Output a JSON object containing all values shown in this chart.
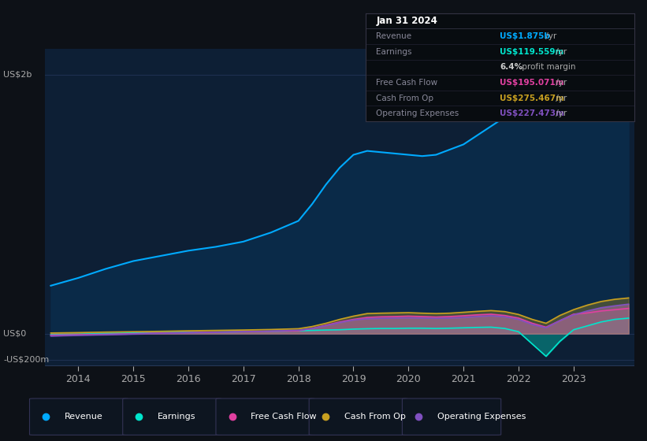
{
  "bg_color": "#0d1117",
  "plot_bg_color": "#0d1f35",
  "years": [
    2013.5,
    2014.0,
    2014.5,
    2015.0,
    2015.5,
    2016.0,
    2016.5,
    2017.0,
    2017.5,
    2018.0,
    2018.25,
    2018.5,
    2018.75,
    2019.0,
    2019.25,
    2019.5,
    2019.75,
    2020.0,
    2020.25,
    2020.5,
    2020.75,
    2021.0,
    2021.25,
    2021.5,
    2021.75,
    2022.0,
    2022.25,
    2022.5,
    2022.75,
    2023.0,
    2023.25,
    2023.5,
    2023.75,
    2024.0
  ],
  "revenue": [
    370,
    430,
    500,
    560,
    600,
    640,
    670,
    710,
    780,
    870,
    1000,
    1150,
    1280,
    1380,
    1410,
    1400,
    1390,
    1380,
    1370,
    1380,
    1420,
    1460,
    1530,
    1600,
    1670,
    1720,
    1820,
    1950,
    2050,
    2120,
    2080,
    1980,
    1920,
    1875
  ],
  "earnings": [
    -8,
    -5,
    2,
    5,
    8,
    10,
    12,
    15,
    18,
    22,
    25,
    28,
    30,
    35,
    38,
    40,
    40,
    42,
    42,
    40,
    42,
    45,
    48,
    50,
    40,
    15,
    -80,
    -175,
    -60,
    30,
    60,
    90,
    110,
    119.559
  ],
  "free_cash_flow": [
    -12,
    -8,
    -5,
    0,
    5,
    8,
    12,
    15,
    18,
    22,
    40,
    65,
    90,
    110,
    125,
    130,
    132,
    135,
    132,
    128,
    132,
    138,
    145,
    150,
    140,
    120,
    80,
    50,
    100,
    150,
    160,
    175,
    185,
    195.071
  ],
  "cash_from_op": [
    5,
    8,
    12,
    15,
    18,
    22,
    25,
    28,
    32,
    38,
    55,
    80,
    110,
    135,
    155,
    158,
    160,
    162,
    158,
    155,
    158,
    165,
    172,
    178,
    170,
    148,
    110,
    80,
    140,
    185,
    220,
    248,
    265,
    275.467
  ],
  "operating_expenses": [
    -18,
    -12,
    -8,
    -3,
    2,
    6,
    10,
    15,
    20,
    26,
    40,
    62,
    85,
    105,
    115,
    118,
    120,
    122,
    120,
    118,
    120,
    125,
    132,
    138,
    130,
    110,
    70,
    45,
    100,
    145,
    175,
    200,
    215,
    227.473
  ],
  "revenue_color": "#00aaff",
  "revenue_fill": "#0a2a48",
  "earnings_color": "#00e5cc",
  "earnings_fill": "#00e5cc",
  "free_cash_flow_color": "#e040a0",
  "free_cash_flow_fill": "#e040a0",
  "cash_from_op_color": "#c8a020",
  "cash_from_op_fill": "#c8a020",
  "operating_expenses_color": "#8050c0",
  "operating_expenses_fill": "#6030a0",
  "ylim_min": -250,
  "ylim_max": 2200,
  "yticks": [
    -200,
    0,
    2000
  ],
  "ytick_labels": [
    "-US$200m",
    "US$0",
    "US$2b"
  ],
  "xticks": [
    2014,
    2015,
    2016,
    2017,
    2018,
    2019,
    2020,
    2021,
    2022,
    2023
  ],
  "xmin": 2013.4,
  "xmax": 2024.1,
  "grid_color": "#1e3050",
  "info_box": {
    "title": "Jan 31 2024",
    "rows": [
      {
        "label": "Revenue",
        "value": "US$1.875b",
        "suffix": " /yr",
        "value_color": "#00aaff"
      },
      {
        "label": "Earnings",
        "value": "US$119.559m",
        "suffix": " /yr",
        "value_color": "#00e5cc"
      },
      {
        "label": "",
        "value": "6.4%",
        "suffix": " profit margin",
        "value_color": "#cccccc"
      },
      {
        "label": "Free Cash Flow",
        "value": "US$195.071m",
        "suffix": " /yr",
        "value_color": "#e040a0"
      },
      {
        "label": "Cash From Op",
        "value": "US$275.467m",
        "suffix": " /yr",
        "value_color": "#c8a020"
      },
      {
        "label": "Operating Expenses",
        "value": "US$227.473m",
        "suffix": " /yr",
        "value_color": "#8050c0"
      }
    ]
  },
  "legend": [
    {
      "label": "Revenue",
      "color": "#00aaff"
    },
    {
      "label": "Earnings",
      "color": "#00e5cc"
    },
    {
      "label": "Free Cash Flow",
      "color": "#e040a0"
    },
    {
      "label": "Cash From Op",
      "color": "#c8a020"
    },
    {
      "label": "Operating Expenses",
      "color": "#8050c0"
    }
  ]
}
